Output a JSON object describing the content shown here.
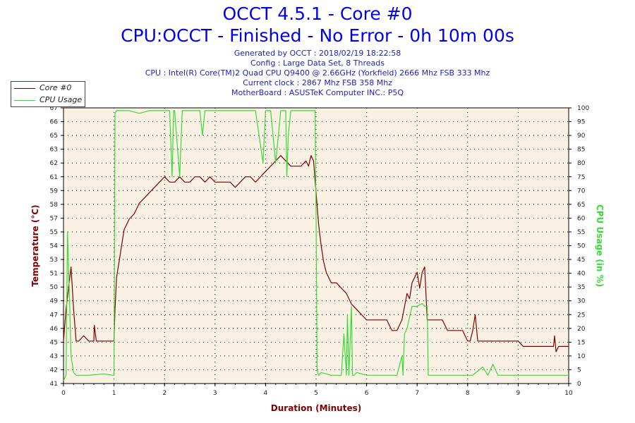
{
  "header": {
    "title": "OCCT 4.5.1 - Core #0",
    "subtitle": "CPU:OCCT - Finished - No Error - 0h 10m 00s",
    "info": [
      "Generated by OCCT : 2018/02/19 18:22:58",
      "Config : Large Data Set, 8 Threads",
      "CPU : Intel(R) Core(TM)2 Quad CPU Q9400 @ 2.66GHz (Yorkfield) 2666 Mhz FSB 333 Mhz",
      "Current clock : 2867 Mhz FSB 358 Mhz",
      "MotherBoard : ASUSTeK Computer INC.: P5Q"
    ]
  },
  "legend": {
    "placement": "top-left"
  },
  "colors": {
    "temperature": "#800000",
    "cpu_usage": "#33dd33",
    "plot_bg": "#faf1e4",
    "title": "#0000ee",
    "info": "#2020c8"
  },
  "chart_data": {
    "type": "line",
    "title": "OCCT 4.5.1 - Core #0",
    "xlabel": "Duration (Minutes)",
    "ylabel": "Temperature (°C)",
    "y2label": "CPU Usage (in %)",
    "xlim": [
      0,
      10
    ],
    "ylim": [
      41,
      67
    ],
    "y2lim": [
      0,
      100
    ],
    "grid": true,
    "x_ticks": [
      "0",
      "1",
      "2",
      "3",
      "4",
      "5",
      "6",
      "7",
      "8",
      "9",
      "10"
    ],
    "y_ticks": [
      "41",
      "42",
      "43",
      "45",
      "46",
      "47",
      "49",
      "50",
      "51",
      "53",
      "54",
      "55",
      "57",
      "58",
      "59",
      "61",
      "62",
      "63",
      "65",
      "66",
      "67"
    ],
    "y2_ticks": [
      "0",
      "5",
      "10",
      "15",
      "20",
      "25",
      "30",
      "35",
      "40",
      "45",
      "50",
      "55",
      "60",
      "65",
      "70",
      "75",
      "80",
      "85",
      "90",
      "95",
      "100"
    ],
    "series": [
      {
        "name": "Core #0",
        "axis": "left",
        "x": [
          0,
          0.05,
          0.1,
          0.15,
          0.2,
          0.25,
          0.3,
          0.4,
          0.5,
          0.6,
          0.61,
          0.65,
          0.9,
          0.95,
          0.98,
          1.0,
          1.02,
          1.05,
          1.1,
          1.15,
          1.2,
          1.3,
          1.4,
          1.5,
          1.6,
          1.7,
          1.8,
          1.9,
          2.0,
          2.1,
          2.2,
          2.3,
          2.4,
          2.5,
          2.6,
          2.7,
          2.8,
          2.9,
          3.0,
          3.1,
          3.2,
          3.3,
          3.4,
          3.5,
          3.6,
          3.7,
          3.8,
          3.9,
          4.0,
          4.1,
          4.2,
          4.3,
          4.4,
          4.5,
          4.6,
          4.7,
          4.8,
          4.85,
          4.9,
          4.95,
          5.0,
          5.05,
          5.1,
          5.15,
          5.2,
          5.3,
          5.4,
          5.5,
          5.6,
          5.7,
          5.8,
          5.9,
          6.0,
          6.1,
          6.2,
          6.3,
          6.4,
          6.5,
          6.6,
          6.7,
          6.8,
          6.85,
          6.9,
          6.95,
          7.0,
          7.05,
          7.1,
          7.15,
          7.2,
          7.3,
          7.4,
          7.5,
          7.6,
          7.7,
          7.8,
          7.9,
          8.0,
          8.05,
          8.1,
          8.15,
          8.2,
          8.3,
          8.5,
          9.0,
          9.1,
          9.3,
          9.5,
          9.6,
          9.7,
          9.72,
          9.75,
          9.8,
          10.0
        ],
        "values": [
          45,
          48,
          50,
          52,
          48,
          45,
          45,
          45.5,
          45,
          45,
          46.5,
          45,
          45,
          45,
          45,
          45,
          48,
          51,
          52.5,
          54,
          55.5,
          56.5,
          57,
          58,
          58.5,
          59,
          59.5,
          60,
          60.5,
          60,
          60,
          60.5,
          60,
          60,
          60.5,
          60.5,
          60,
          60.5,
          60,
          60,
          60,
          60,
          59.5,
          60,
          60.5,
          60.5,
          60,
          60.5,
          61,
          61.5,
          62,
          62.5,
          62,
          61.5,
          61.5,
          61.5,
          62,
          61.5,
          62.5,
          62,
          59,
          56,
          54,
          52.5,
          51.5,
          50.5,
          50.5,
          50,
          49.5,
          48.5,
          48,
          47.5,
          47,
          47,
          47,
          47,
          47,
          46,
          46,
          47,
          49.5,
          49,
          50.5,
          51,
          51.5,
          50,
          51.5,
          52,
          47,
          47,
          47,
          47,
          46,
          46,
          46,
          46,
          45,
          45,
          46,
          47.5,
          45,
          45,
          45,
          45,
          44.5,
          44.5,
          44.5,
          44.5,
          44.5,
          45.5,
          44,
          44.5,
          44.5
        ]
      },
      {
        "name": "CPU Usage",
        "axis": "right",
        "x": [
          0,
          0.05,
          0.08,
          0.12,
          0.15,
          0.2,
          0.25,
          0.3,
          0.5,
          0.8,
          0.98,
          1.0,
          1.02,
          1.05,
          1.1,
          1.3,
          1.5,
          1.7,
          1.9,
          2.1,
          2.15,
          2.18,
          2.2,
          2.3,
          2.35,
          2.38,
          2.4,
          2.6,
          2.7,
          2.75,
          2.8,
          3.0,
          3.2,
          3.5,
          3.8,
          3.95,
          4.0,
          4.05,
          4.1,
          4.2,
          4.3,
          4.4,
          4.42,
          4.45,
          4.5,
          4.6,
          4.7,
          4.8,
          4.9,
          4.98,
          5.0,
          5.02,
          5.05,
          5.1,
          5.3,
          5.5,
          5.55,
          5.6,
          5.62,
          5.65,
          5.7,
          5.72,
          5.75,
          5.8,
          6.0,
          6.3,
          6.6,
          6.7,
          6.72,
          6.75,
          6.8,
          6.9,
          7.0,
          7.1,
          7.15,
          7.2,
          7.22,
          7.25,
          7.3,
          7.5,
          7.8,
          8.0,
          8.1,
          8.3,
          8.4,
          8.5,
          8.6,
          8.8,
          9.0,
          9.5,
          10.0
        ],
        "values": [
          1,
          3,
          55,
          30,
          10,
          4,
          3,
          3,
          3,
          3.5,
          3,
          3,
          98,
          99,
          99,
          99,
          98,
          99,
          99,
          99,
          75,
          99,
          99,
          75,
          99,
          99,
          99,
          99,
          99,
          90,
          99,
          99,
          99,
          99,
          99,
          80,
          99,
          99,
          99,
          80,
          99,
          99,
          75,
          90,
          99,
          99,
          99,
          99,
          99,
          99,
          60,
          5,
          3,
          4,
          3,
          3,
          18,
          3,
          25,
          3,
          28,
          3,
          3,
          4,
          3,
          3,
          3,
          10,
          3,
          18,
          20,
          28,
          28,
          29,
          28,
          28,
          3,
          3,
          3,
          3,
          3,
          3,
          3,
          6,
          3,
          7,
          3,
          3,
          3,
          3,
          3
        ]
      }
    ]
  }
}
